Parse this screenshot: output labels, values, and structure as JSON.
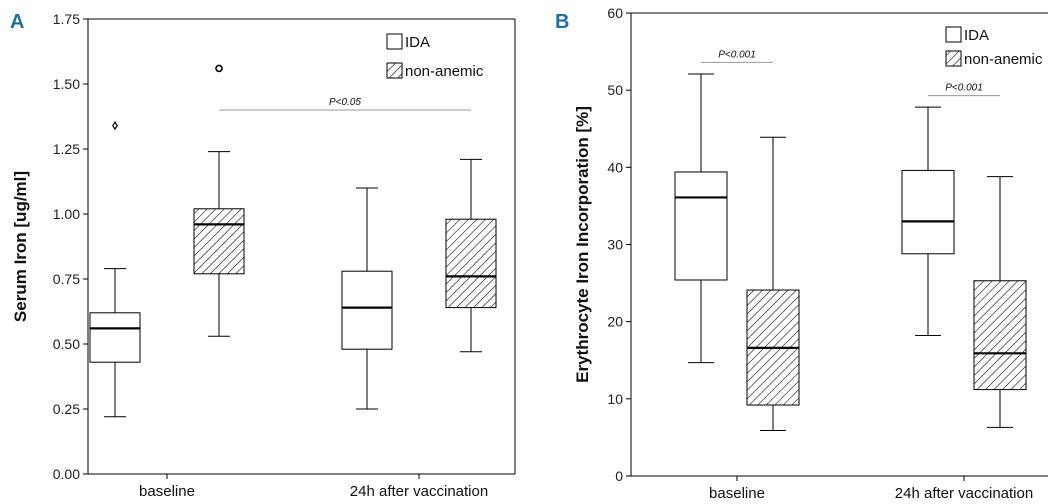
{
  "colors": {
    "panel_letter": "#1f6fa0",
    "axis": "#000000",
    "box_fill": "#ffffff",
    "hatch": "#000000",
    "sig_line": "#999999"
  },
  "chart_data": [
    {
      "panel": "A",
      "type": "box",
      "ylabel": "Serum Iron [ug/ml]",
      "xlabel": "",
      "ylim": [
        0,
        1.75
      ],
      "yticks": [
        0,
        0.25,
        0.5,
        0.75,
        1.0,
        1.25,
        1.5,
        1.75
      ],
      "ytick_labels": [
        "0.00",
        "0.25",
        "0.50",
        "0.75",
        "1.00",
        "1.25",
        "1.50",
        "1.75"
      ],
      "categories": [
        "baseline",
        "24h after vaccination"
      ],
      "legend": {
        "placement": "top-right",
        "entries": [
          {
            "label": "IDA",
            "style": "plain"
          },
          {
            "label": "non-anemic",
            "style": "hatched"
          }
        ]
      },
      "series": [
        {
          "name": "IDA",
          "boxes": [
            {
              "whisker_low": 0.22,
              "q1": 0.43,
              "median": 0.56,
              "q3": 0.62,
              "whisker_high": 0.79,
              "outliers": [
                {
                  "value": 1.34,
                  "marker": "star"
                }
              ]
            },
            {
              "whisker_low": 0.25,
              "q1": 0.48,
              "median": 0.64,
              "q3": 0.78,
              "whisker_high": 1.1,
              "outliers": []
            }
          ]
        },
        {
          "name": "non-anemic",
          "boxes": [
            {
              "whisker_low": 0.53,
              "q1": 0.77,
              "median": 0.96,
              "q3": 1.02,
              "whisker_high": 1.24,
              "outliers": [
                {
                  "value": 1.56,
                  "marker": "circle"
                }
              ]
            },
            {
              "whisker_low": 0.47,
              "q1": 0.64,
              "median": 0.76,
              "q3": 0.98,
              "whisker_high": 1.21,
              "outliers": []
            }
          ]
        }
      ],
      "annotations": [
        {
          "text": "P<0.05",
          "y": 1.4,
          "from": {
            "category": 0,
            "series": 1
          },
          "to": {
            "category": 1,
            "series": 1
          }
        }
      ]
    },
    {
      "panel": "B",
      "type": "box",
      "ylabel": "Erythrocyte Iron Incorporation [%]",
      "xlabel": "",
      "ylim": [
        0,
        60
      ],
      "yticks": [
        0,
        10,
        20,
        30,
        40,
        50,
        60
      ],
      "ytick_labels": [
        "0",
        "10",
        "20",
        "30",
        "40",
        "50",
        "60"
      ],
      "categories": [
        "baseline",
        "24h after vaccination"
      ],
      "legend": {
        "placement": "top-right",
        "entries": [
          {
            "label": "IDA",
            "style": "plain"
          },
          {
            "label": "non-anemic",
            "style": "hatched"
          }
        ]
      },
      "series": [
        {
          "name": "IDA",
          "boxes": [
            {
              "whisker_low": 14.7,
              "q1": 25.4,
              "median": 36.1,
              "q3": 39.4,
              "whisker_high": 52.1,
              "outliers": []
            },
            {
              "whisker_low": 18.2,
              "q1": 28.8,
              "median": 33.0,
              "q3": 39.6,
              "whisker_high": 47.8,
              "outliers": []
            }
          ]
        },
        {
          "name": "non-anemic",
          "boxes": [
            {
              "whisker_low": 5.9,
              "q1": 9.2,
              "median": 16.6,
              "q3": 24.1,
              "whisker_high": 43.9,
              "outliers": []
            },
            {
              "whisker_low": 6.3,
              "q1": 11.2,
              "median": 15.9,
              "q3": 25.3,
              "whisker_high": 38.8,
              "outliers": []
            }
          ]
        }
      ],
      "annotations": [
        {
          "text": "P<0.001",
          "y": 53.6,
          "from": {
            "category": 0,
            "series": 0
          },
          "to": {
            "category": 0,
            "series": 1
          }
        },
        {
          "text": "P<0.001",
          "y": 49.3,
          "from": {
            "category": 1,
            "series": 0
          },
          "to": {
            "category": 1,
            "series": 1
          }
        }
      ]
    }
  ]
}
